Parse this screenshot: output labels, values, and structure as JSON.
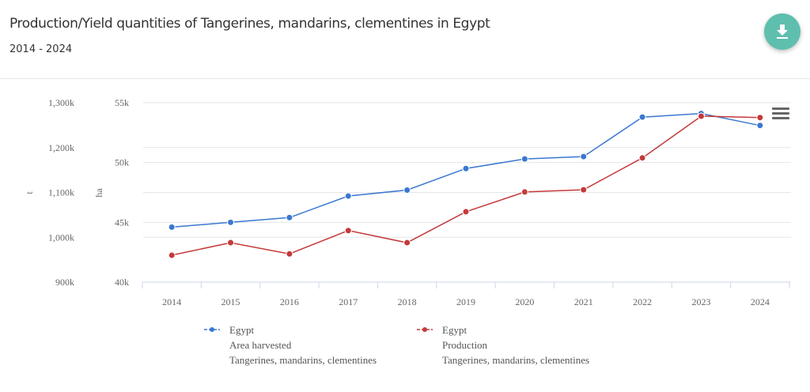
{
  "header": {
    "title": "Production/Yield quantities of Tangerines, mandarins, clementines in Egypt",
    "subtitle": "2014 - 2024",
    "download_icon": "download-icon",
    "menu_icon": "hamburger-menu-icon"
  },
  "colors": {
    "area_series": "#3a78d0",
    "production_series": "#c4393a",
    "download_button": "#5fbfaf"
  },
  "chart_data": {
    "type": "line",
    "title": "Production/Yield quantities of Tangerines, mandarins, clementines in Egypt",
    "subtitle": "2014 - 2024",
    "categories": [
      "2014",
      "2015",
      "2016",
      "2017",
      "2018",
      "2019",
      "2020",
      "2021",
      "2022",
      "2023",
      "2024"
    ],
    "axes": {
      "left": {
        "label": "t",
        "range": [
          900,
          1300
        ],
        "ticks": [
          "900k",
          "1,000k",
          "1,100k",
          "1,200k",
          "1,300k"
        ],
        "tick_values": [
          900,
          1000,
          1100,
          1200,
          1300
        ]
      },
      "right": {
        "label": "ha",
        "range": [
          40,
          55
        ],
        "ticks": [
          "40k",
          "45k",
          "50k",
          "55k"
        ],
        "tick_values": [
          40,
          45,
          50,
          55
        ]
      }
    },
    "grid": true,
    "legend_position": "bottom",
    "series": [
      {
        "name": "Egypt",
        "element": "Area harvested",
        "item": "Tangerines, mandarins, clementines",
        "axis": "right",
        "unit": "ha (thousands)",
        "color": "#3a78d0",
        "values": [
          44.6,
          45.0,
          45.4,
          47.2,
          47.7,
          49.5,
          50.3,
          50.5,
          53.8,
          54.1,
          53.1
        ]
      },
      {
        "name": "Egypt",
        "element": "Production",
        "item": "Tangerines, mandarins, clementines",
        "axis": "left",
        "unit": "t (thousands)",
        "color": "#c4393a",
        "values": [
          960,
          988,
          963,
          1015,
          988,
          1057,
          1101,
          1106,
          1177,
          1270,
          1267
        ]
      }
    ]
  }
}
